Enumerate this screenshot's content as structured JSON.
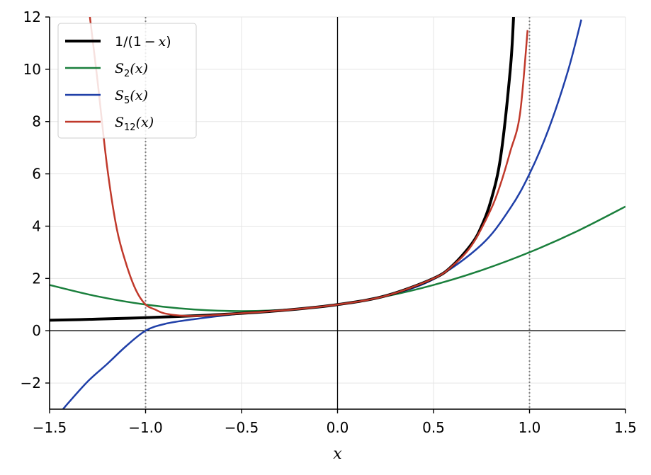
{
  "chart_data": {
    "type": "line",
    "xlabel": "x",
    "ylabel": "",
    "xlim": [
      -1.5,
      1.5
    ],
    "ylim": [
      -3,
      12
    ],
    "xticks": [
      -1.5,
      -1.0,
      -0.5,
      0.0,
      0.5,
      1.0,
      1.5
    ],
    "xtick_labels": [
      "−1.5",
      "−1.0",
      "−0.5",
      "0.0",
      "0.5",
      "1.0",
      "1.5"
    ],
    "yticks": [
      -2,
      0,
      2,
      4,
      6,
      8,
      10,
      12
    ],
    "ytick_labels": [
      "−2",
      "0",
      "2",
      "4",
      "6",
      "8",
      "10",
      "12"
    ],
    "grid": true,
    "legend_position": "top-left",
    "reference_lines": {
      "x_axis_at": 0,
      "y_axis_at": 0,
      "dotted_vertical_x": [
        -1.0,
        1.0
      ]
    },
    "series": [
      {
        "name": "1/(1 − x)",
        "legend_main": "1/(1 − ",
        "legend_var": "x",
        "legend_tail": ")",
        "color": "#000000",
        "width": 4,
        "x": [
          -1.5,
          -1.25,
          -1.0,
          -0.75,
          -0.5,
          -0.25,
          0.0,
          0.25,
          0.5,
          0.6,
          0.7,
          0.75,
          0.8,
          0.85,
          0.9,
          0.917
        ],
        "y": [
          0.4,
          0.444,
          0.5,
          0.571,
          0.667,
          0.8,
          1.0,
          1.333,
          2.0,
          2.5,
          3.333,
          4.0,
          5.0,
          6.667,
          10.0,
          12.0
        ]
      },
      {
        "name": "S2(x)",
        "legend_main": "S",
        "legend_sub": "2",
        "legend_tail": "(x)",
        "color": "#1a7f3c",
        "width": 2.5,
        "x": [
          -1.5,
          -1.25,
          -1.0,
          -0.75,
          -0.5,
          -0.25,
          0.0,
          0.25,
          0.5,
          0.75,
          1.0,
          1.25,
          1.5
        ],
        "y": [
          1.75,
          1.313,
          1.0,
          0.813,
          0.75,
          0.813,
          1.0,
          1.313,
          1.75,
          2.313,
          3.0,
          3.813,
          4.75
        ]
      },
      {
        "name": "S5(x)",
        "legend_main": "S",
        "legend_sub": "5",
        "legend_tail": "(x)",
        "color": "#1f3fa8",
        "width": 2.5,
        "x": [
          -1.43,
          -1.4,
          -1.3,
          -1.2,
          -1.1,
          -1.0,
          -0.9,
          -0.75,
          -0.5,
          -0.25,
          0.0,
          0.25,
          0.5,
          0.75,
          0.9,
          1.0,
          1.1,
          1.2,
          1.27
        ],
        "y": [
          -3.0,
          -2.74,
          -1.93,
          -1.27,
          -0.58,
          0.0,
          0.26,
          0.44,
          0.66,
          0.8,
          1.0,
          1.33,
          1.97,
          3.29,
          4.69,
          6.0,
          7.72,
          9.93,
          11.9
        ]
      },
      {
        "name": "S12(x)",
        "legend_main": "S",
        "legend_sub": "12",
        "legend_tail": "(x)",
        "color": "#c0392b",
        "width": 2.5,
        "x": [
          -1.29,
          -1.25,
          -1.2,
          -1.15,
          -1.1,
          -1.05,
          -1.0,
          -0.95,
          -0.9,
          -0.8,
          -0.7,
          -0.5,
          -0.25,
          0.0,
          0.25,
          0.5,
          0.6,
          0.7,
          0.8,
          0.85,
          0.9,
          0.95,
          0.99
        ],
        "y": [
          12.0,
          9.54,
          6.26,
          3.9,
          2.53,
          1.55,
          1.0,
          0.81,
          0.66,
          0.57,
          0.57,
          0.67,
          0.8,
          1.0,
          1.33,
          2.0,
          2.49,
          3.28,
          4.66,
          5.63,
          6.86,
          8.27,
          11.5
        ]
      }
    ]
  }
}
